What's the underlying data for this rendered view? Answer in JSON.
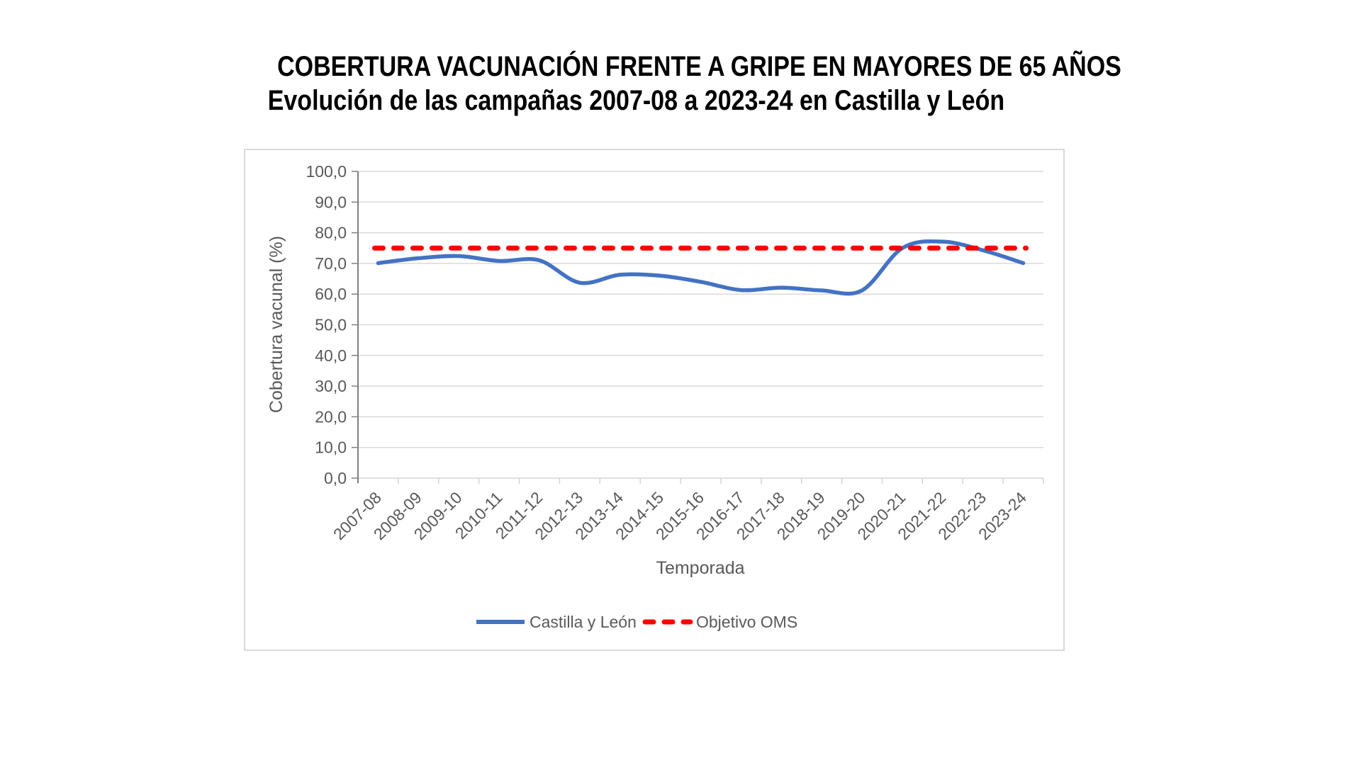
{
  "title": {
    "line1": "COBERTURA VACUNACIÓN FRENTE A GRIPE EN MAYORES DE 65 AÑOS",
    "line2": "Evolución de las campañas 2007-08 a 2023-24 en Castilla y León"
  },
  "chart_data": {
    "type": "line",
    "title": "COBERTURA VACUNACIÓN FRENTE A GRIPE EN MAYORES DE 65 AÑOS — Evolución de las campañas 2007-08 a 2023-24 en Castilla y León",
    "categories": [
      "2007-08",
      "2008-09",
      "2009-10",
      "2010-11",
      "2011-12",
      "2012-13",
      "2013-14",
      "2014-15",
      "2015-16",
      "2016-17",
      "2017-18",
      "2018-19",
      "2019-20",
      "2020-21",
      "2021-22",
      "2022-23",
      "2023-24"
    ],
    "series": [
      {
        "name": "Castilla y León",
        "color": "#4472C4",
        "line_style": "solid",
        "smoothed": true,
        "values": [
          70.1,
          71.7,
          72.4,
          70.8,
          71.0,
          63.7,
          66.3,
          66.0,
          64.0,
          61.3,
          62.1,
          61.2,
          61.2,
          75.0,
          77.1,
          74.3,
          70.1
        ]
      },
      {
        "name": "Objetivo OMS",
        "color": "#FF0000",
        "line_style": "dashed",
        "constant_value": 75.0
      }
    ],
    "xlabel": "Temporada",
    "ylabel": "Cobertura vacunal (%)",
    "ylim": [
      0,
      100
    ],
    "ytick_step": 10,
    "ytick_labels": [
      "0,0",
      "10,0",
      "20,0",
      "30,0",
      "40,0",
      "50,0",
      "60,0",
      "70,0",
      "80,0",
      "90,0",
      "100,0"
    ],
    "grid": true,
    "legend_position": "bottom",
    "colors": {
      "gridline": "#D9D9D9",
      "y_axis": "#808080",
      "x_axis": "#D4D4D4",
      "label_text": "#595959"
    }
  },
  "legend": {
    "series1_label": "Castilla y León",
    "series2_label": "Objetivo OMS"
  }
}
